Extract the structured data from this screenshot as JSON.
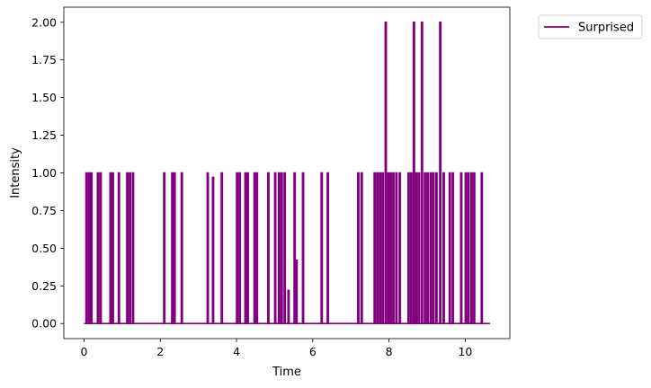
{
  "chart_data": {
    "type": "line",
    "xlabel": "Time",
    "ylabel": "Intensity",
    "xlim": [
      -0.53,
      11.17
    ],
    "ylim": [
      -0.1,
      2.1
    ],
    "xticks": [
      0,
      2,
      4,
      6,
      8,
      10
    ],
    "xtick_labels": [
      "0",
      "2",
      "4",
      "6",
      "8",
      "10"
    ],
    "yticks": [
      0,
      0.25,
      0.5,
      0.75,
      1.0,
      1.25,
      1.5,
      1.75,
      2.0
    ],
    "ytick_labels": [
      "0.00",
      "0.25",
      "0.50",
      "0.75",
      "1.00",
      "1.25",
      "1.50",
      "1.75",
      "2.00"
    ],
    "grid": false,
    "legend_position": "outside top-right",
    "series": [
      {
        "name": "Surprised",
        "color": "#800080",
        "pulses": [
          [
            0.05,
            0.08,
            1
          ],
          [
            0.12,
            0.15,
            1
          ],
          [
            0.18,
            0.21,
            1
          ],
          [
            0.35,
            0.38,
            1
          ],
          [
            0.42,
            0.45,
            1
          ],
          [
            0.68,
            0.71,
            1
          ],
          [
            0.74,
            0.77,
            1
          ],
          [
            0.9,
            0.93,
            1
          ],
          [
            1.12,
            1.15,
            1
          ],
          [
            1.19,
            1.22,
            1
          ],
          [
            1.27,
            1.3,
            1
          ],
          [
            2.09,
            2.12,
            1
          ],
          [
            2.3,
            2.33,
            1
          ],
          [
            2.36,
            2.39,
            1
          ],
          [
            2.55,
            2.58,
            1
          ],
          [
            3.23,
            3.26,
            1
          ],
          [
            3.37,
            3.4,
            0.97
          ],
          [
            3.6,
            3.63,
            1
          ],
          [
            4.0,
            4.03,
            1
          ],
          [
            4.07,
            4.1,
            1
          ],
          [
            4.22,
            4.25,
            1
          ],
          [
            4.28,
            4.31,
            1
          ],
          [
            4.46,
            4.49,
            1
          ],
          [
            4.52,
            4.55,
            1
          ],
          [
            4.82,
            4.85,
            1
          ],
          [
            5.0,
            5.03,
            1
          ],
          [
            5.1,
            5.13,
            1
          ],
          [
            5.17,
            5.2,
            1
          ],
          [
            5.25,
            5.28,
            1
          ],
          [
            5.35,
            5.38,
            0.22
          ],
          [
            5.51,
            5.54,
            1
          ],
          [
            5.56,
            5.59,
            0.42
          ],
          [
            5.73,
            5.76,
            1
          ],
          [
            6.22,
            6.25,
            1
          ],
          [
            6.38,
            6.41,
            1
          ],
          [
            7.18,
            7.21,
            1
          ],
          [
            7.27,
            7.3,
            1
          ],
          [
            7.61,
            7.64,
            1
          ],
          [
            7.68,
            7.71,
            1
          ],
          [
            7.75,
            7.78,
            1
          ],
          [
            7.82,
            7.85,
            1
          ],
          [
            7.9,
            7.93,
            2
          ],
          [
            7.97,
            8.0,
            1
          ],
          [
            8.03,
            8.06,
            1
          ],
          [
            8.1,
            8.13,
            1
          ],
          [
            8.18,
            8.21,
            1
          ],
          [
            8.27,
            8.3,
            1
          ],
          [
            8.5,
            8.53,
            1
          ],
          [
            8.57,
            8.6,
            1
          ],
          [
            8.64,
            8.67,
            2
          ],
          [
            8.7,
            8.73,
            1
          ],
          [
            8.77,
            8.8,
            1
          ],
          [
            8.85,
            8.88,
            2
          ],
          [
            8.93,
            8.96,
            1
          ],
          [
            9.0,
            9.03,
            1
          ],
          [
            9.08,
            9.11,
            1
          ],
          [
            9.15,
            9.18,
            1
          ],
          [
            9.23,
            9.26,
            1
          ],
          [
            9.33,
            9.36,
            2
          ],
          [
            9.42,
            9.45,
            1
          ],
          [
            9.58,
            9.61,
            1
          ],
          [
            9.66,
            9.69,
            1
          ],
          [
            9.88,
            9.91,
            1
          ],
          [
            10.0,
            10.03,
            1
          ],
          [
            10.07,
            10.1,
            1
          ],
          [
            10.15,
            10.18,
            1
          ],
          [
            10.22,
            10.25,
            1
          ],
          [
            10.42,
            10.45,
            1
          ]
        ],
        "x_end": 10.65
      }
    ]
  }
}
